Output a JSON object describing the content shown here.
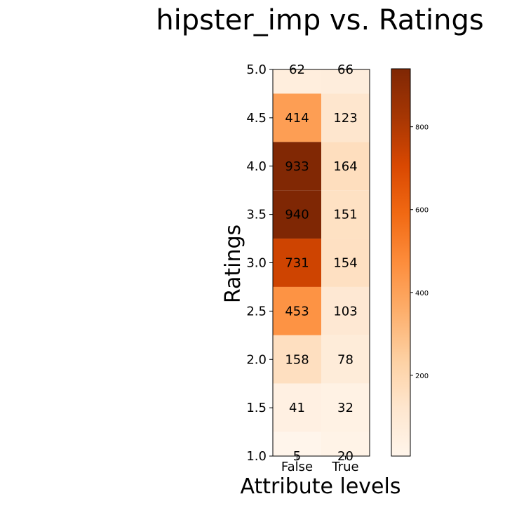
{
  "chart_data": {
    "type": "heatmap",
    "title": "hipster_imp vs. Ratings",
    "xlabel": "Attribute levels",
    "ylabel": "Ratings",
    "x_categories": [
      "False",
      "True"
    ],
    "y_ticks": [
      "1.0",
      "1.5",
      "2.0",
      "2.5",
      "3.0",
      "3.5",
      "4.0",
      "4.5",
      "5.0"
    ],
    "rows": [
      {
        "rating": 5.0,
        "values": [
          62,
          66
        ]
      },
      {
        "rating": 4.5,
        "values": [
          414,
          123
        ]
      },
      {
        "rating": 4.0,
        "values": [
          933,
          164
        ]
      },
      {
        "rating": 3.5,
        "values": [
          940,
          151
        ]
      },
      {
        "rating": 3.0,
        "values": [
          731,
          154
        ]
      },
      {
        "rating": 2.5,
        "values": [
          453,
          103
        ]
      },
      {
        "rating": 2.0,
        "values": [
          158,
          78
        ]
      },
      {
        "rating": 1.5,
        "values": [
          41,
          32
        ]
      },
      {
        "rating": 1.0,
        "values": [
          5,
          20
        ]
      }
    ],
    "colormap": "Oranges",
    "color_range": [
      5,
      940
    ],
    "colorbar_ticks": [
      "200",
      "400",
      "600",
      "800"
    ],
    "colorbar_tick_values": [
      200,
      400,
      600,
      800
    ]
  }
}
